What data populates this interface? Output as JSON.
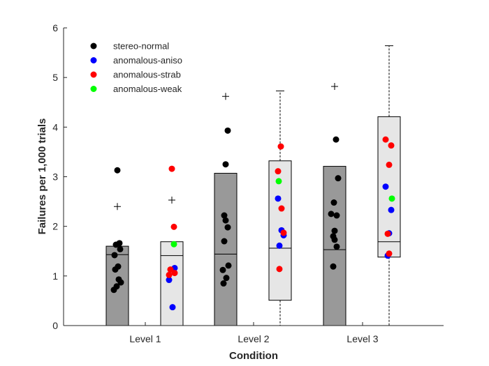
{
  "chart_data": {
    "type": "box",
    "xlabel": "Condition",
    "ylabel": "Failures per 1,000 trials",
    "ylim": [
      0,
      6
    ],
    "yticks": [
      0,
      1,
      2,
      3,
      4,
      5,
      6
    ],
    "categories": [
      "Level 1",
      "Level 2",
      "Level 3"
    ],
    "groups": [
      {
        "name": "stereo-normal",
        "fill_color": "#999999"
      },
      {
        "name": "anomalous",
        "fill_color": "#e6e6e6"
      }
    ],
    "boxes": [
      {
        "category": "Level 1",
        "group": "stereo-normal",
        "q1": 0.0,
        "median": 1.43,
        "q3": 1.6,
        "whisker_low": 0.0,
        "whisker_high": 1.6,
        "outliers": [
          2.4
        ]
      },
      {
        "category": "Level 1",
        "group": "anomalous",
        "q1": 0.0,
        "median": 1.41,
        "q3": 1.69,
        "whisker_low": 0.0,
        "whisker_high": 1.69,
        "outliers": [
          2.53
        ]
      },
      {
        "category": "Level 2",
        "group": "stereo-normal",
        "q1": 0.0,
        "median": 1.44,
        "q3": 3.07,
        "whisker_low": 0.0,
        "whisker_high": 3.07,
        "outliers": [
          4.62
        ]
      },
      {
        "category": "Level 2",
        "group": "anomalous",
        "q1": 0.51,
        "median": 1.56,
        "q3": 3.32,
        "whisker_low": 0.0,
        "whisker_high": 4.73,
        "outliers": []
      },
      {
        "category": "Level 3",
        "group": "stereo-normal",
        "q1": 0.0,
        "median": 1.53,
        "q3": 3.21,
        "whisker_low": 0.0,
        "whisker_high": 3.21,
        "outliers": [
          4.82
        ]
      },
      {
        "category": "Level 3",
        "group": "anomalous",
        "q1": 1.38,
        "median": 1.69,
        "q3": 4.21,
        "whisker_low": 0.0,
        "whisker_high": 5.64,
        "outliers": []
      }
    ],
    "legend": {
      "placement": "top-left",
      "entries": [
        {
          "name": "stereo-normal",
          "color": "#000000"
        },
        {
          "name": "anomalous-aniso",
          "color": "#0000ff"
        },
        {
          "name": "anomalous-strab",
          "color": "#ff0000"
        },
        {
          "name": "anomalous-weak",
          "color": "#00ff00"
        }
      ]
    },
    "points": [
      {
        "category": "Level 1",
        "group": "stereo-normal",
        "subgroup": "stereo-normal",
        "values": [
          3.13,
          1.66,
          1.63,
          1.54,
          1.42,
          1.19,
          1.13,
          0.93,
          0.87,
          0.79,
          0.72
        ]
      },
      {
        "category": "Level 1",
        "group": "anomalous",
        "subgroup": "anomalous-strab",
        "values": [
          3.16,
          1.99,
          1.13,
          1.06,
          1.02
        ]
      },
      {
        "category": "Level 1",
        "group": "anomalous",
        "subgroup": "anomalous-aniso",
        "values": [
          1.16,
          0.92,
          0.37
        ]
      },
      {
        "category": "Level 1",
        "group": "anomalous",
        "subgroup": "anomalous-weak",
        "values": [
          1.64
        ]
      },
      {
        "category": "Level 2",
        "group": "stereo-normal",
        "subgroup": "stereo-normal",
        "values": [
          3.93,
          3.25,
          2.22,
          2.12,
          1.98,
          1.7,
          1.21,
          1.12,
          0.96,
          0.85
        ]
      },
      {
        "category": "Level 2",
        "group": "anomalous",
        "subgroup": "anomalous-strab",
        "values": [
          3.61,
          3.11,
          2.36,
          1.87,
          1.14
        ]
      },
      {
        "category": "Level 2",
        "group": "anomalous",
        "subgroup": "anomalous-aniso",
        "values": [
          2.56,
          1.92,
          1.82,
          1.61
        ]
      },
      {
        "category": "Level 2",
        "group": "anomalous",
        "subgroup": "anomalous-weak",
        "values": [
          2.91
        ]
      },
      {
        "category": "Level 3",
        "group": "stereo-normal",
        "subgroup": "stereo-normal",
        "values": [
          3.75,
          2.97,
          2.48,
          2.25,
          2.22,
          1.91,
          1.8,
          1.73,
          1.59,
          1.19
        ]
      },
      {
        "category": "Level 3",
        "group": "anomalous",
        "subgroup": "anomalous-strab",
        "values": [
          3.75,
          3.63,
          3.24,
          1.85,
          1.45
        ]
      },
      {
        "category": "Level 3",
        "group": "anomalous",
        "subgroup": "anomalous-aniso",
        "values": [
          2.8,
          2.33,
          1.86,
          1.41
        ]
      },
      {
        "category": "Level 3",
        "group": "anomalous",
        "subgroup": "anomalous-weak",
        "values": [
          2.56
        ]
      }
    ]
  }
}
